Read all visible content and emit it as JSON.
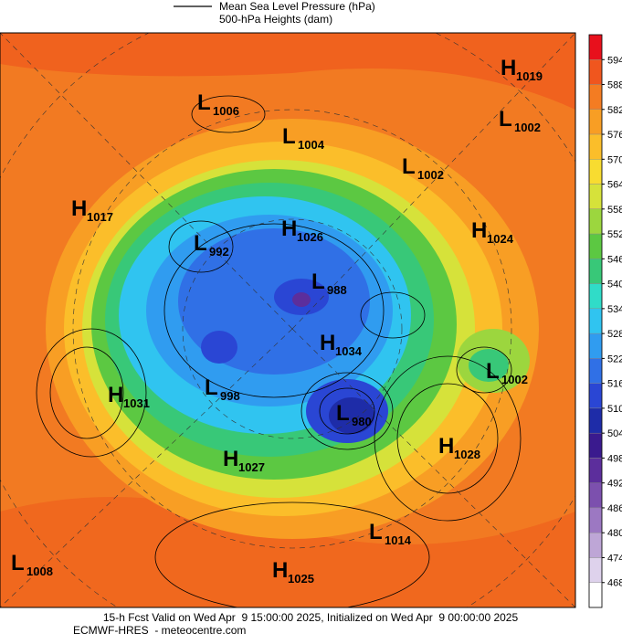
{
  "legend": {
    "lines": [
      "Mean Sea Level Pressure (hPa)",
      "500-hPa Heights (dam)"
    ]
  },
  "colorbar": {
    "ticks": [
      594,
      588,
      582,
      576,
      570,
      564,
      558,
      552,
      546,
      540,
      534,
      528,
      522,
      516,
      510,
      504,
      498,
      492,
      486,
      480,
      474,
      468
    ],
    "colors": [
      "#e8101c",
      "#f0561e",
      "#f47c22",
      "#f89e24",
      "#fbbe2a",
      "#f8dc30",
      "#d6e23a",
      "#9cd63e",
      "#5cc842",
      "#38c878",
      "#30dcc8",
      "#30c4f0",
      "#309cf0",
      "#3070e6",
      "#2a46d4",
      "#1e2ca8",
      "#3a1a8e",
      "#5c2e9c",
      "#7c50ae",
      "#9c78c2",
      "#bea6d6",
      "#ded2ec",
      "#ffffff"
    ]
  },
  "centers": [
    {
      "letter": "H",
      "value": "1019"
    },
    {
      "letter": "L",
      "value": "1002"
    },
    {
      "letter": "L",
      "value": "1006"
    },
    {
      "letter": "L",
      "value": "1004"
    },
    {
      "letter": "L",
      "value": "1002"
    },
    {
      "letter": "H",
      "value": "1017"
    },
    {
      "letter": "H",
      "value": "1026"
    },
    {
      "letter": "H",
      "value": "1024"
    },
    {
      "letter": "L",
      "value": "992"
    },
    {
      "letter": "L",
      "value": "988"
    },
    {
      "letter": "H",
      "value": "1034"
    },
    {
      "letter": "L",
      "value": "1002"
    },
    {
      "letter": "H",
      "value": "1031"
    },
    {
      "letter": "L",
      "value": "998"
    },
    {
      "letter": "L",
      "value": "980"
    },
    {
      "letter": "H",
      "value": "1028"
    },
    {
      "letter": "H",
      "value": "1027"
    },
    {
      "letter": "L",
      "value": "1014"
    },
    {
      "letter": "L",
      "value": "1008"
    },
    {
      "letter": "H",
      "value": "1025"
    }
  ],
  "footer": [
    "15-h Fcst Valid on Wed Apr  9 15:00:00 2025, Initialized on Wed Apr  9 00:00:00 2025",
    "ECMWF-HRES  - meteocentre.com"
  ]
}
